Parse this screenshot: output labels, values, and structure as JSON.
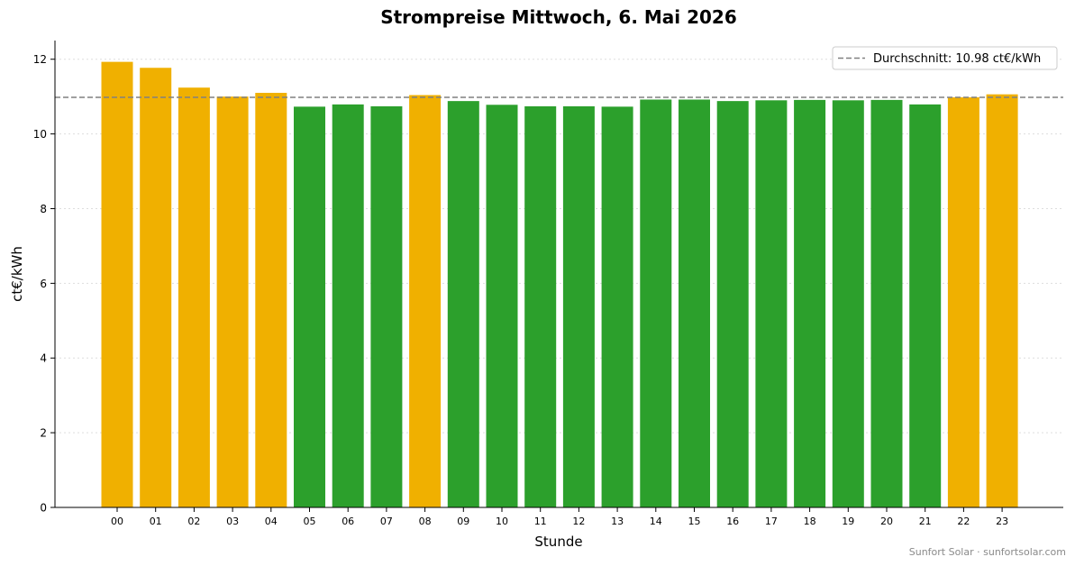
{
  "chart_data": {
    "type": "bar",
    "title": "Strompreise Mittwoch, 6. Mai 2026",
    "xlabel": "Stunde",
    "ylabel": "ct€/kWh",
    "ylim": [
      0,
      12.5
    ],
    "yticks": [
      0,
      2,
      4,
      6,
      8,
      10,
      12
    ],
    "grid": "horizontal dotted",
    "legend_position": "top-right",
    "categories": [
      "00",
      "01",
      "02",
      "03",
      "04",
      "05",
      "06",
      "07",
      "08",
      "09",
      "10",
      "11",
      "12",
      "13",
      "14",
      "15",
      "16",
      "17",
      "18",
      "19",
      "20",
      "21",
      "22",
      "23"
    ],
    "values": [
      11.93,
      11.77,
      11.24,
      11.0,
      11.1,
      10.73,
      10.79,
      10.74,
      11.04,
      10.88,
      10.78,
      10.74,
      10.74,
      10.73,
      10.92,
      10.92,
      10.88,
      10.9,
      10.91,
      10.9,
      10.91,
      10.79,
      10.98,
      11.06
    ],
    "bar_colors": [
      "#f0b000",
      "#f0b000",
      "#f0b000",
      "#f0b000",
      "#f0b000",
      "#2ca02c",
      "#2ca02c",
      "#2ca02c",
      "#f0b000",
      "#2ca02c",
      "#2ca02c",
      "#2ca02c",
      "#2ca02c",
      "#2ca02c",
      "#2ca02c",
      "#2ca02c",
      "#2ca02c",
      "#2ca02c",
      "#2ca02c",
      "#2ca02c",
      "#2ca02c",
      "#2ca02c",
      "#f0b000",
      "#f0b000"
    ],
    "average": {
      "value": 10.98,
      "label": "Durchschnitt: 10.98 ct€/kWh",
      "color": "#808080"
    },
    "colors": {
      "above_average": "#f0b000",
      "below_average": "#2ca02c"
    }
  },
  "footer": {
    "watermark": "Sunfort Solar · sunfortsolar.com"
  }
}
